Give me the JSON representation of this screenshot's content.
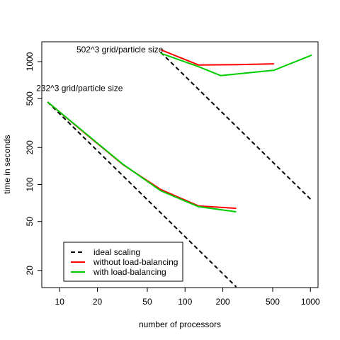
{
  "chart_data": {
    "type": "line",
    "scale": {
      "x": "log",
      "y": "log"
    },
    "xlabel": "number of processors",
    "ylabel": "time in seconds",
    "xlim": [
      7.2,
      1150
    ],
    "ylim": [
      14.5,
      1450
    ],
    "x_ticks": [
      10,
      20,
      50,
      100,
      200,
      500,
      1000
    ],
    "y_ticks": [
      20,
      50,
      100,
      200,
      500,
      1000
    ],
    "grid": false,
    "legend": {
      "placement": "bottom-left",
      "entries": [
        {
          "label": "ideal scaling",
          "color": "#000000",
          "dashed": true
        },
        {
          "label": "without load-balancing",
          "color": "#ff0000",
          "dashed": false
        },
        {
          "label": "with load-balancing",
          "color": "#00cd00",
          "dashed": false
        }
      ]
    },
    "annotations": [
      {
        "text": "232^3 grid/particle size",
        "x": 8,
        "y": 540
      },
      {
        "text": "502^3 grid/particle size",
        "x": 64,
        "y": 1190
      }
    ],
    "series": [
      {
        "group": "232^3",
        "style": "ideal",
        "color": "#000000",
        "dashed": true,
        "points": [
          [
            8,
            470
          ],
          [
            16,
            235
          ],
          [
            32,
            117.5
          ],
          [
            64,
            58.8
          ],
          [
            128,
            29.4
          ],
          [
            256,
            14.7
          ]
        ]
      },
      {
        "group": "232^3",
        "style": "without",
        "color": "#ff0000",
        "dashed": false,
        "points": [
          [
            8,
            470
          ],
          [
            16,
            260
          ],
          [
            32,
            145
          ],
          [
            64,
            91
          ],
          [
            128,
            67
          ],
          [
            256,
            64
          ]
        ]
      },
      {
        "group": "232^3",
        "style": "with",
        "color": "#00cd00",
        "dashed": false,
        "points": [
          [
            8,
            470
          ],
          [
            16,
            262
          ],
          [
            32,
            146
          ],
          [
            64,
            89
          ],
          [
            128,
            66
          ],
          [
            256,
            60
          ]
        ]
      },
      {
        "group": "502^3",
        "style": "ideal",
        "color": "#000000",
        "dashed": true,
        "points": [
          [
            64,
            1190
          ],
          [
            128,
            595
          ],
          [
            256,
            297.5
          ],
          [
            512,
            148.8
          ],
          [
            1024,
            74.4
          ]
        ]
      },
      {
        "group": "502^3",
        "style": "without",
        "color": "#ff0000",
        "dashed": false,
        "points": [
          [
            64,
            1250
          ],
          [
            128,
            940
          ],
          [
            256,
            945
          ],
          [
            512,
            960
          ]
        ]
      },
      {
        "group": "502^3",
        "style": "with",
        "color": "#00cd00",
        "dashed": false,
        "points": [
          [
            64,
            1170
          ],
          [
            128,
            910
          ],
          [
            192,
            770
          ],
          [
            512,
            850
          ],
          [
            1024,
            1130
          ]
        ]
      }
    ]
  }
}
